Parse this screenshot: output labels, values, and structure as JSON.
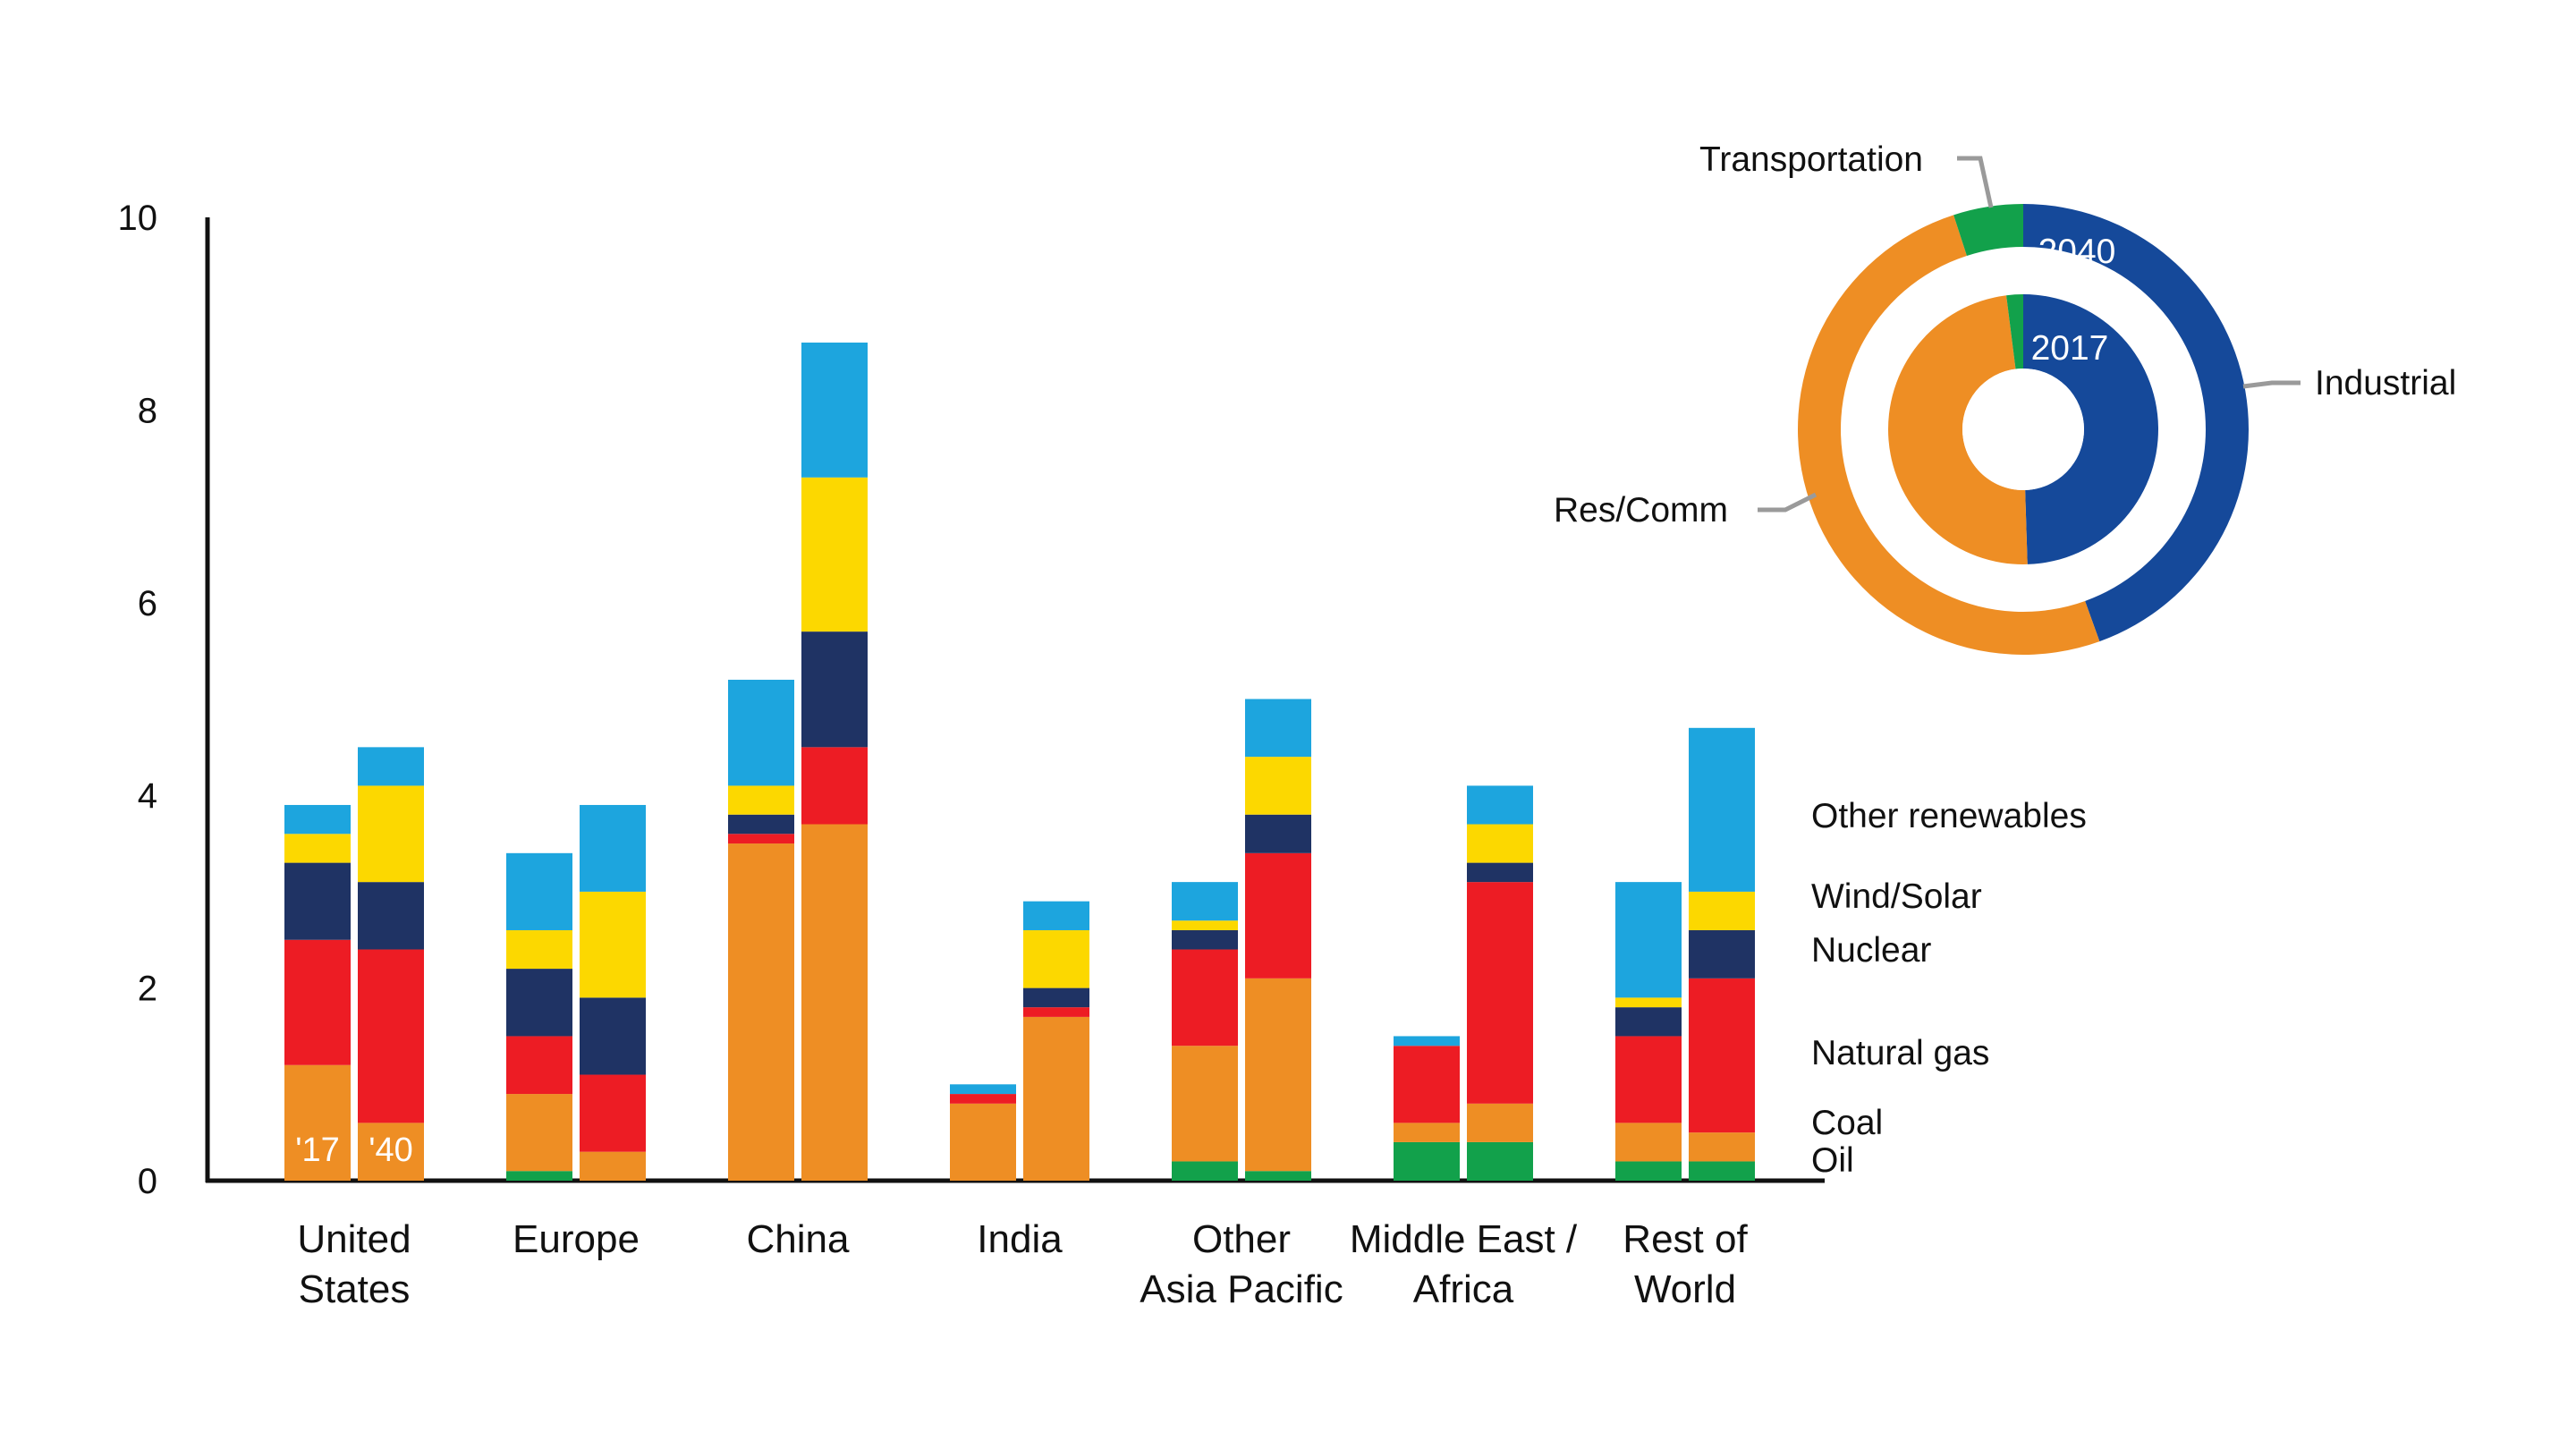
{
  "chart_data": [
    {
      "type": "bar",
      "stacked": true,
      "ylim": [
        0,
        10
      ],
      "yticks": [
        0,
        2,
        4,
        6,
        8,
        10
      ],
      "categories": [
        "United\nStates",
        "Europe",
        "China",
        "India",
        "Other\nAsia Pacific",
        "Middle East /\nAfrica",
        "Rest of\nWorld"
      ],
      "bar_labels": [
        "'17",
        "'40"
      ],
      "series": [
        {
          "name": "Oil",
          "color": "#12a14b",
          "values": [
            [
              0,
              0
            ],
            [
              0.1,
              0
            ],
            [
              0,
              0
            ],
            [
              0,
              0
            ],
            [
              0.2,
              0.1
            ],
            [
              0.4,
              0.4
            ],
            [
              0.2,
              0.2
            ]
          ]
        },
        {
          "name": "Coal",
          "color": "#ee8e24",
          "values": [
            [
              1.2,
              0.6
            ],
            [
              0.8,
              0.3
            ],
            [
              3.5,
              3.7
            ],
            [
              0.8,
              1.7
            ],
            [
              1.2,
              2.0
            ],
            [
              0.2,
              0.4
            ],
            [
              0.4,
              0.3
            ]
          ]
        },
        {
          "name": "Natural gas",
          "color": "#ed1c24",
          "values": [
            [
              1.3,
              1.8
            ],
            [
              0.6,
              0.8
            ],
            [
              0.1,
              0.8
            ],
            [
              0.1,
              0.1
            ],
            [
              1.0,
              1.3
            ],
            [
              0.8,
              2.3
            ],
            [
              0.9,
              1.6
            ]
          ]
        },
        {
          "name": "Nuclear",
          "color": "#1f3364",
          "values": [
            [
              0.8,
              0.7
            ],
            [
              0.7,
              0.8
            ],
            [
              0.2,
              1.2
            ],
            [
              0,
              0.2
            ],
            [
              0.2,
              0.4
            ],
            [
              0,
              0.2
            ],
            [
              0.3,
              0.5
            ]
          ]
        },
        {
          "name": "Wind/Solar",
          "color": "#fcd800",
          "values": [
            [
              0.3,
              1.0
            ],
            [
              0.4,
              1.1
            ],
            [
              0.3,
              1.6
            ],
            [
              0,
              0.6
            ],
            [
              0.1,
              0.6
            ],
            [
              0,
              0.4
            ],
            [
              0.1,
              0.4
            ]
          ]
        },
        {
          "name": "Other renewables",
          "color": "#1da5de",
          "values": [
            [
              0.3,
              0.4
            ],
            [
              0.8,
              0.9
            ],
            [
              1.1,
              1.4
            ],
            [
              0.1,
              0.3
            ],
            [
              0.4,
              0.6
            ],
            [
              0.1,
              0.4
            ],
            [
              1.2,
              1.7
            ]
          ]
        }
      ]
    },
    {
      "type": "pie",
      "donut": true,
      "rings": [
        {
          "label": "2040",
          "slices": [
            {
              "name": "Industrial",
              "value": 44.5,
              "color": "#15499a"
            },
            {
              "name": "Res/Comm",
              "value": 50.5,
              "color": "#ee8e24"
            },
            {
              "name": "Transportation",
              "value": 5.0,
              "color": "#12a14b"
            }
          ]
        },
        {
          "label": "2017",
          "slices": [
            {
              "name": "Industrial",
              "value": 49.5,
              "color": "#15499a"
            },
            {
              "name": "Res/Comm",
              "value": 48.5,
              "color": "#ee8e24"
            },
            {
              "name": "Transportation",
              "value": 2.0,
              "color": "#12a14b"
            }
          ]
        }
      ],
      "callouts": [
        "Transportation",
        "Industrial",
        "Res/Comm"
      ]
    }
  ]
}
